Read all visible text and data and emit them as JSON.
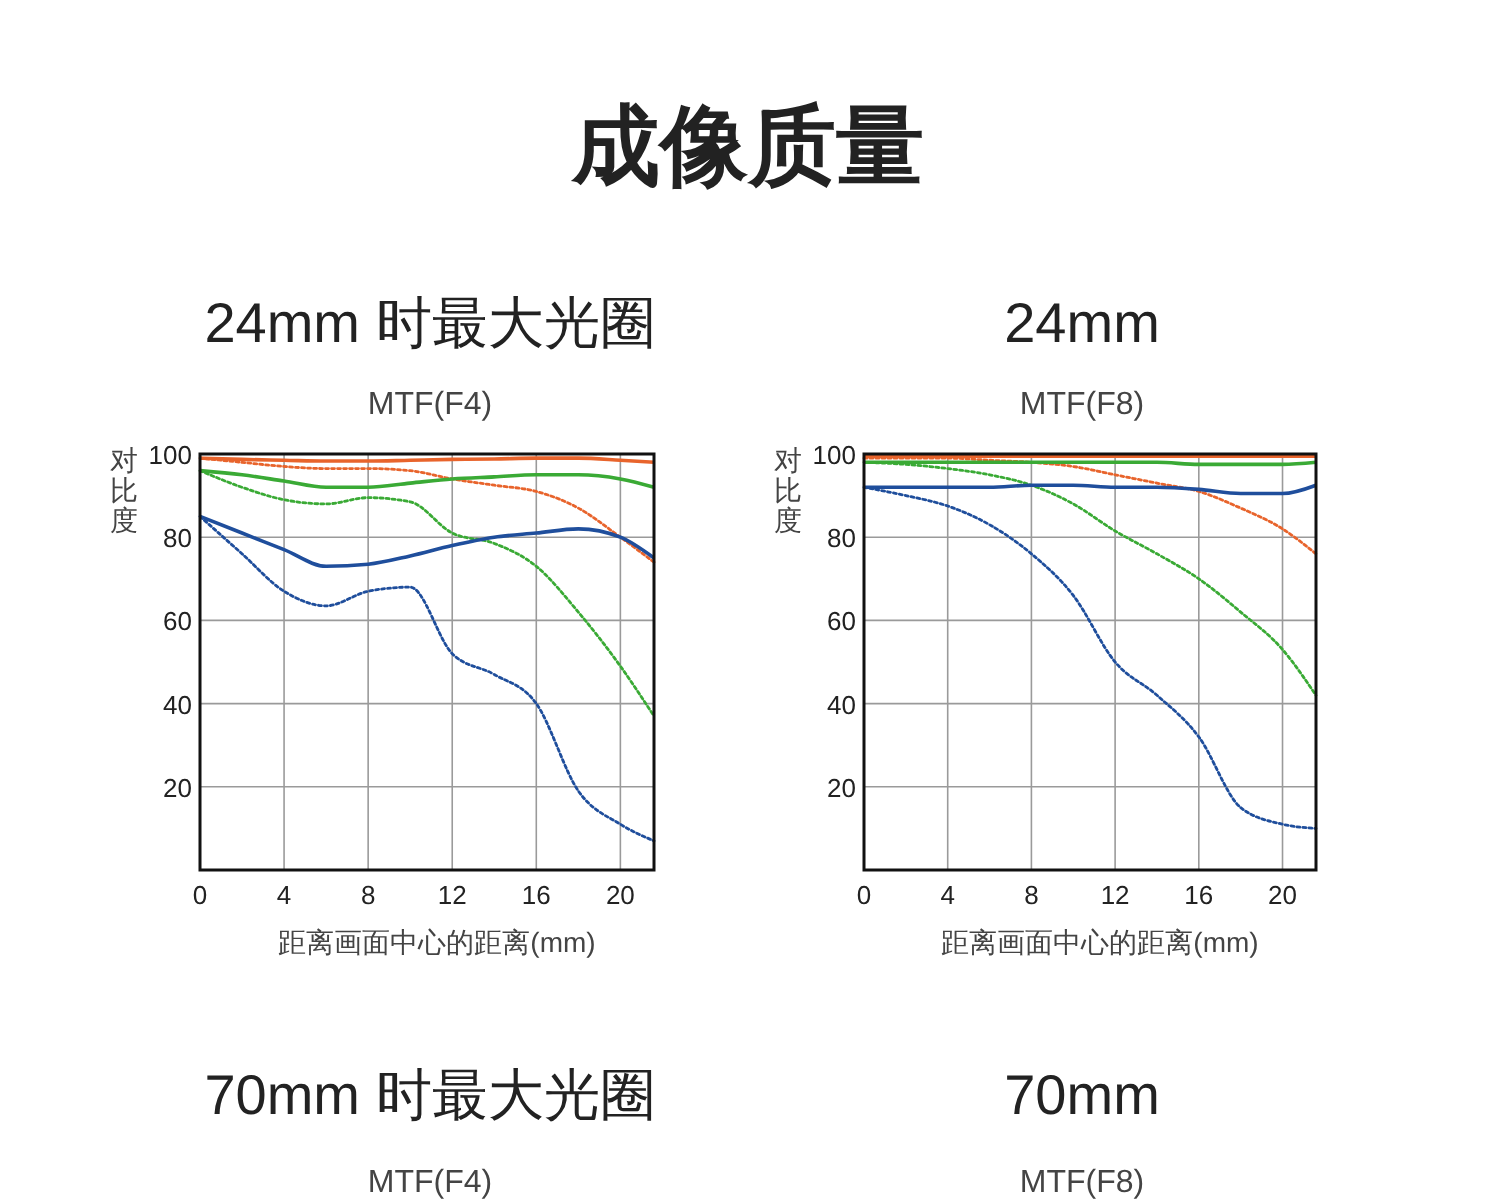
{
  "chart_data": [
    {
      "type": "other",
      "title": "成像质量"
    },
    {
      "type": "line",
      "title": "24mm 时最大光圈",
      "subtitle": "MTF(F4)",
      "xlabel": "距离画面中心的距离(mm)",
      "ylabel": "对比度",
      "x": [
        0,
        2,
        4,
        6,
        8,
        10,
        12,
        14,
        16,
        18,
        20,
        21.6
      ],
      "xlim": [
        0,
        21.6
      ],
      "xticks": [
        0,
        4,
        8,
        12,
        16,
        20
      ],
      "ylim": [
        0,
        100
      ],
      "yticks": [
        20,
        40,
        60,
        80,
        100
      ],
      "grid": true,
      "series": [
        {
          "color": "#e8642c",
          "line_style": "solid",
          "values": [
            99,
            98.7,
            98.5,
            98.3,
            98.3,
            98.5,
            98.7,
            98.8,
            99,
            99,
            98.5,
            98
          ]
        },
        {
          "color": "#e8642c",
          "line_style": "dotted",
          "values": [
            99,
            98,
            97,
            96.5,
            96.5,
            96,
            94,
            92.5,
            91,
            87,
            80,
            74
          ]
        },
        {
          "color": "#3aaa35",
          "line_style": "solid",
          "values": [
            96,
            95,
            93.5,
            92,
            92,
            93,
            94,
            94.5,
            95,
            95,
            94,
            92
          ]
        },
        {
          "color": "#3aaa35",
          "line_style": "dotted",
          "values": [
            96,
            92,
            89,
            88,
            89.5,
            88.5,
            81,
            78.5,
            73,
            62,
            49,
            37
          ]
        },
        {
          "color": "#1f4e9c",
          "line_style": "solid",
          "values": [
            85,
            81,
            77,
            73,
            73.5,
            75.5,
            78,
            80,
            81,
            82,
            80,
            75
          ]
        },
        {
          "color": "#1f4e9c",
          "line_style": "dotted",
          "values": [
            85,
            76,
            67,
            63.5,
            67,
            68,
            52,
            47,
            40,
            19,
            11,
            7
          ]
        }
      ]
    },
    {
      "type": "line",
      "title": "24mm",
      "subtitle": "MTF(F8)",
      "xlabel": "距离画面中心的距离(mm)",
      "ylabel": "对比度",
      "x": [
        0,
        2,
        4,
        6,
        8,
        10,
        12,
        14,
        16,
        18,
        20,
        21.6
      ],
      "xlim": [
        0,
        21.6
      ],
      "xticks": [
        0,
        4,
        8,
        12,
        16,
        20
      ],
      "ylim": [
        0,
        100
      ],
      "yticks": [
        20,
        40,
        60,
        80,
        100
      ],
      "grid": true,
      "series": [
        {
          "color": "#e8642c",
          "line_style": "solid",
          "values": [
            99.5,
            99.5,
            99.5,
            99.5,
            99.5,
            99.5,
            99.5,
            99.5,
            99.5,
            99.5,
            99.5,
            99.5
          ]
        },
        {
          "color": "#e8642c",
          "line_style": "dotted",
          "values": [
            99,
            99,
            99,
            98.5,
            98,
            97,
            95,
            93,
            91,
            87,
            82,
            76
          ]
        },
        {
          "color": "#3aaa35",
          "line_style": "solid",
          "values": [
            98,
            98,
            98,
            98,
            98,
            98,
            98,
            98,
            97.5,
            97.5,
            97.5,
            98
          ]
        },
        {
          "color": "#3aaa35",
          "line_style": "dotted",
          "values": [
            98,
            97.5,
            96.5,
            95,
            92.5,
            88,
            81.5,
            76,
            70,
            62,
            53,
            42
          ]
        },
        {
          "color": "#1f4e9c",
          "line_style": "solid",
          "values": [
            92,
            92,
            92,
            92,
            92.5,
            92.5,
            92,
            92,
            91.5,
            90.5,
            90.5,
            92.5
          ]
        },
        {
          "color": "#1f4e9c",
          "line_style": "dotted",
          "values": [
            92,
            90,
            87.5,
            83,
            76,
            66,
            50,
            42,
            32,
            15,
            11,
            10
          ]
        }
      ]
    },
    {
      "type": "other",
      "title": "70mm 时最大光圈",
      "subtitle": "MTF(F4)"
    },
    {
      "type": "other",
      "title": "70mm",
      "subtitle": "MTF(F8)"
    }
  ]
}
